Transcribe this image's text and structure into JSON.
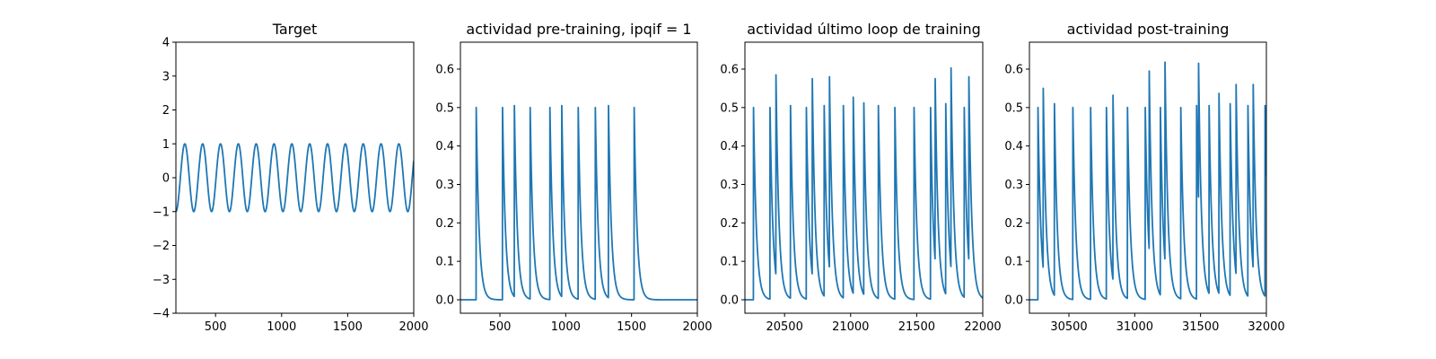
{
  "line_color": "#1f77b4",
  "chart_data": [
    {
      "type": "line",
      "title": "Target",
      "xlabel": "",
      "ylabel": "",
      "xlim": [
        200,
        2000
      ],
      "ylim": [
        -4,
        4
      ],
      "xticks": [
        500,
        1000,
        1500,
        2000
      ],
      "yticks": [
        -4,
        -3,
        -2,
        -1,
        0,
        1,
        2,
        3,
        4
      ],
      "grid": false,
      "series": [
        {
          "kind": "sine",
          "amplitude": 1,
          "period": 135,
          "x_start": 200,
          "x_end": 2000,
          "first_trough_x": 200,
          "peaks_x": [
            267,
            402,
            537,
            672,
            807,
            942,
            1077,
            1212,
            1347,
            1482,
            1617,
            1752,
            1887
          ]
        }
      ]
    },
    {
      "type": "line",
      "title": "actividad pre-training, ipqif = 1",
      "xlabel": "",
      "ylabel": "",
      "xlim": [
        200,
        2000
      ],
      "ylim": [
        -0.035,
        0.67
      ],
      "xticks": [
        500,
        1000,
        1500,
        2000
      ],
      "yticks": [
        0.0,
        0.1,
        0.2,
        0.3,
        0.4,
        0.5,
        0.6
      ],
      "grid": false,
      "series": [
        {
          "kind": "spikes",
          "baseline": 0,
          "decay": 22,
          "x_start": 200,
          "x_end": 2000,
          "spikes": [
            [
              320,
              0.5
            ],
            [
              520,
              0.5
            ],
            [
              610,
              0.505
            ],
            [
              730,
              0.5
            ],
            [
              880,
              0.5
            ],
            [
              970,
              0.505
            ],
            [
              1095,
              0.5
            ],
            [
              1225,
              0.5
            ],
            [
              1325,
              0.505
            ],
            [
              1520,
              0.5
            ]
          ]
        }
      ]
    },
    {
      "type": "line",
      "title": "actividad último loop de training",
      "xlabel": "",
      "ylabel": "",
      "xlim": [
        20200,
        22000
      ],
      "ylim": [
        -0.035,
        0.67
      ],
      "xticks": [
        20500,
        21000,
        21500,
        22000
      ],
      "yticks": [
        0.0,
        0.1,
        0.2,
        0.3,
        0.4,
        0.5,
        0.6
      ],
      "grid": false,
      "series": [
        {
          "kind": "spikes",
          "baseline": 0,
          "decay": 22,
          "x_start": 20200,
          "x_end": 22000,
          "spikes": [
            [
              20265,
              0.5
            ],
            [
              20390,
              0.5
            ],
            [
              20435,
              0.585
            ],
            [
              20545,
              0.505
            ],
            [
              20665,
              0.5
            ],
            [
              20710,
              0.575
            ],
            [
              20800,
              0.505
            ],
            [
              20840,
              0.58
            ],
            [
              20945,
              0.505
            ],
            [
              21020,
              0.527
            ],
            [
              21100,
              0.512
            ],
            [
              21210,
              0.505
            ],
            [
              21335,
              0.5
            ],
            [
              21480,
              0.5
            ],
            [
              21605,
              0.5
            ],
            [
              21640,
              0.575
            ],
            [
              21720,
              0.51
            ],
            [
              21760,
              0.603
            ],
            [
              21860,
              0.5
            ],
            [
              21895,
              0.58
            ]
          ]
        }
      ]
    },
    {
      "type": "line",
      "title": "actividad post-training",
      "xlabel": "",
      "ylabel": "",
      "xlim": [
        30200,
        32000
      ],
      "ylim": [
        -0.035,
        0.67
      ],
      "xticks": [
        30500,
        31000,
        31500,
        32000
      ],
      "yticks": [
        0.0,
        0.1,
        0.2,
        0.3,
        0.4,
        0.5,
        0.6
      ],
      "grid": false,
      "series": [
        {
          "kind": "spikes",
          "baseline": 0,
          "decay": 22,
          "x_start": 30200,
          "x_end": 32000,
          "spikes": [
            [
              30265,
              0.5
            ],
            [
              30305,
              0.55
            ],
            [
              30390,
              0.51
            ],
            [
              30530,
              0.5
            ],
            [
              30665,
              0.5
            ],
            [
              30785,
              0.5
            ],
            [
              30835,
              0.532
            ],
            [
              30945,
              0.5
            ],
            [
              31080,
              0.5
            ],
            [
              31110,
              0.595
            ],
            [
              31195,
              0.5
            ],
            [
              31230,
              0.618
            ],
            [
              31350,
              0.5
            ],
            [
              31470,
              0.505
            ],
            [
              31485,
              0.615
            ],
            [
              31565,
              0.505
            ],
            [
              31640,
              0.537
            ],
            [
              31725,
              0.51
            ],
            [
              31770,
              0.56
            ],
            [
              31860,
              0.505
            ],
            [
              31900,
              0.56
            ],
            [
              31990,
              0.505
            ]
          ]
        }
      ]
    }
  ]
}
